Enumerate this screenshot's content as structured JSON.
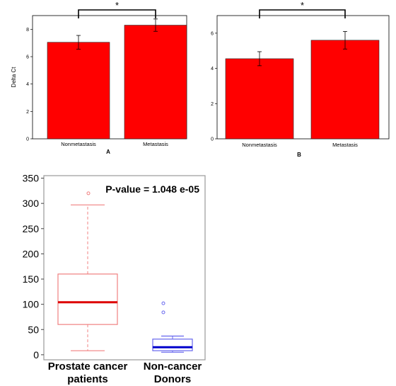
{
  "chart_data": [
    {
      "type": "bar",
      "panel": "A",
      "categories": [
        "Nonmetastasis",
        "Metastasis"
      ],
      "values": [
        7.05,
        8.3
      ],
      "errors": [
        0.5,
        0.45
      ],
      "ylabel": "Delta Ct",
      "ylim": [
        0,
        9
      ],
      "yticks": [
        0,
        2,
        4,
        6,
        8
      ],
      "significance": "*",
      "colors": {
        "bar": "#ff0000"
      }
    },
    {
      "type": "bar",
      "panel": "B",
      "categories": [
        "Nonmetastasis",
        "Metastasis"
      ],
      "values": [
        4.55,
        5.6
      ],
      "errors": [
        0.4,
        0.5
      ],
      "ylabel": "",
      "ylim": [
        0,
        7
      ],
      "yticks": [
        0,
        2,
        4,
        6
      ],
      "significance": "*",
      "colors": {
        "bar": "#ff0000"
      }
    },
    {
      "type": "box",
      "annotation": "P-value = 1.048 e-05",
      "ylim": [
        -10,
        355
      ],
      "yticks": [
        0,
        50,
        100,
        150,
        200,
        250,
        300,
        350
      ],
      "groups": [
        {
          "label_lines": [
            "Prostate cancer",
            "patients"
          ],
          "min": 8,
          "q1": 60,
          "median": 104,
          "q3": 160,
          "max": 297,
          "outliers": [
            320
          ],
          "color": "#f08080",
          "median_color": "#dd0000"
        },
        {
          "label_lines": [
            "Non-cancer",
            "Donors"
          ],
          "min": 5,
          "q1": 8,
          "median": 15,
          "q3": 31,
          "max": 37,
          "outliers": [
            84,
            102
          ],
          "color": "#6666ee",
          "median_color": "#0000cc"
        }
      ]
    }
  ]
}
